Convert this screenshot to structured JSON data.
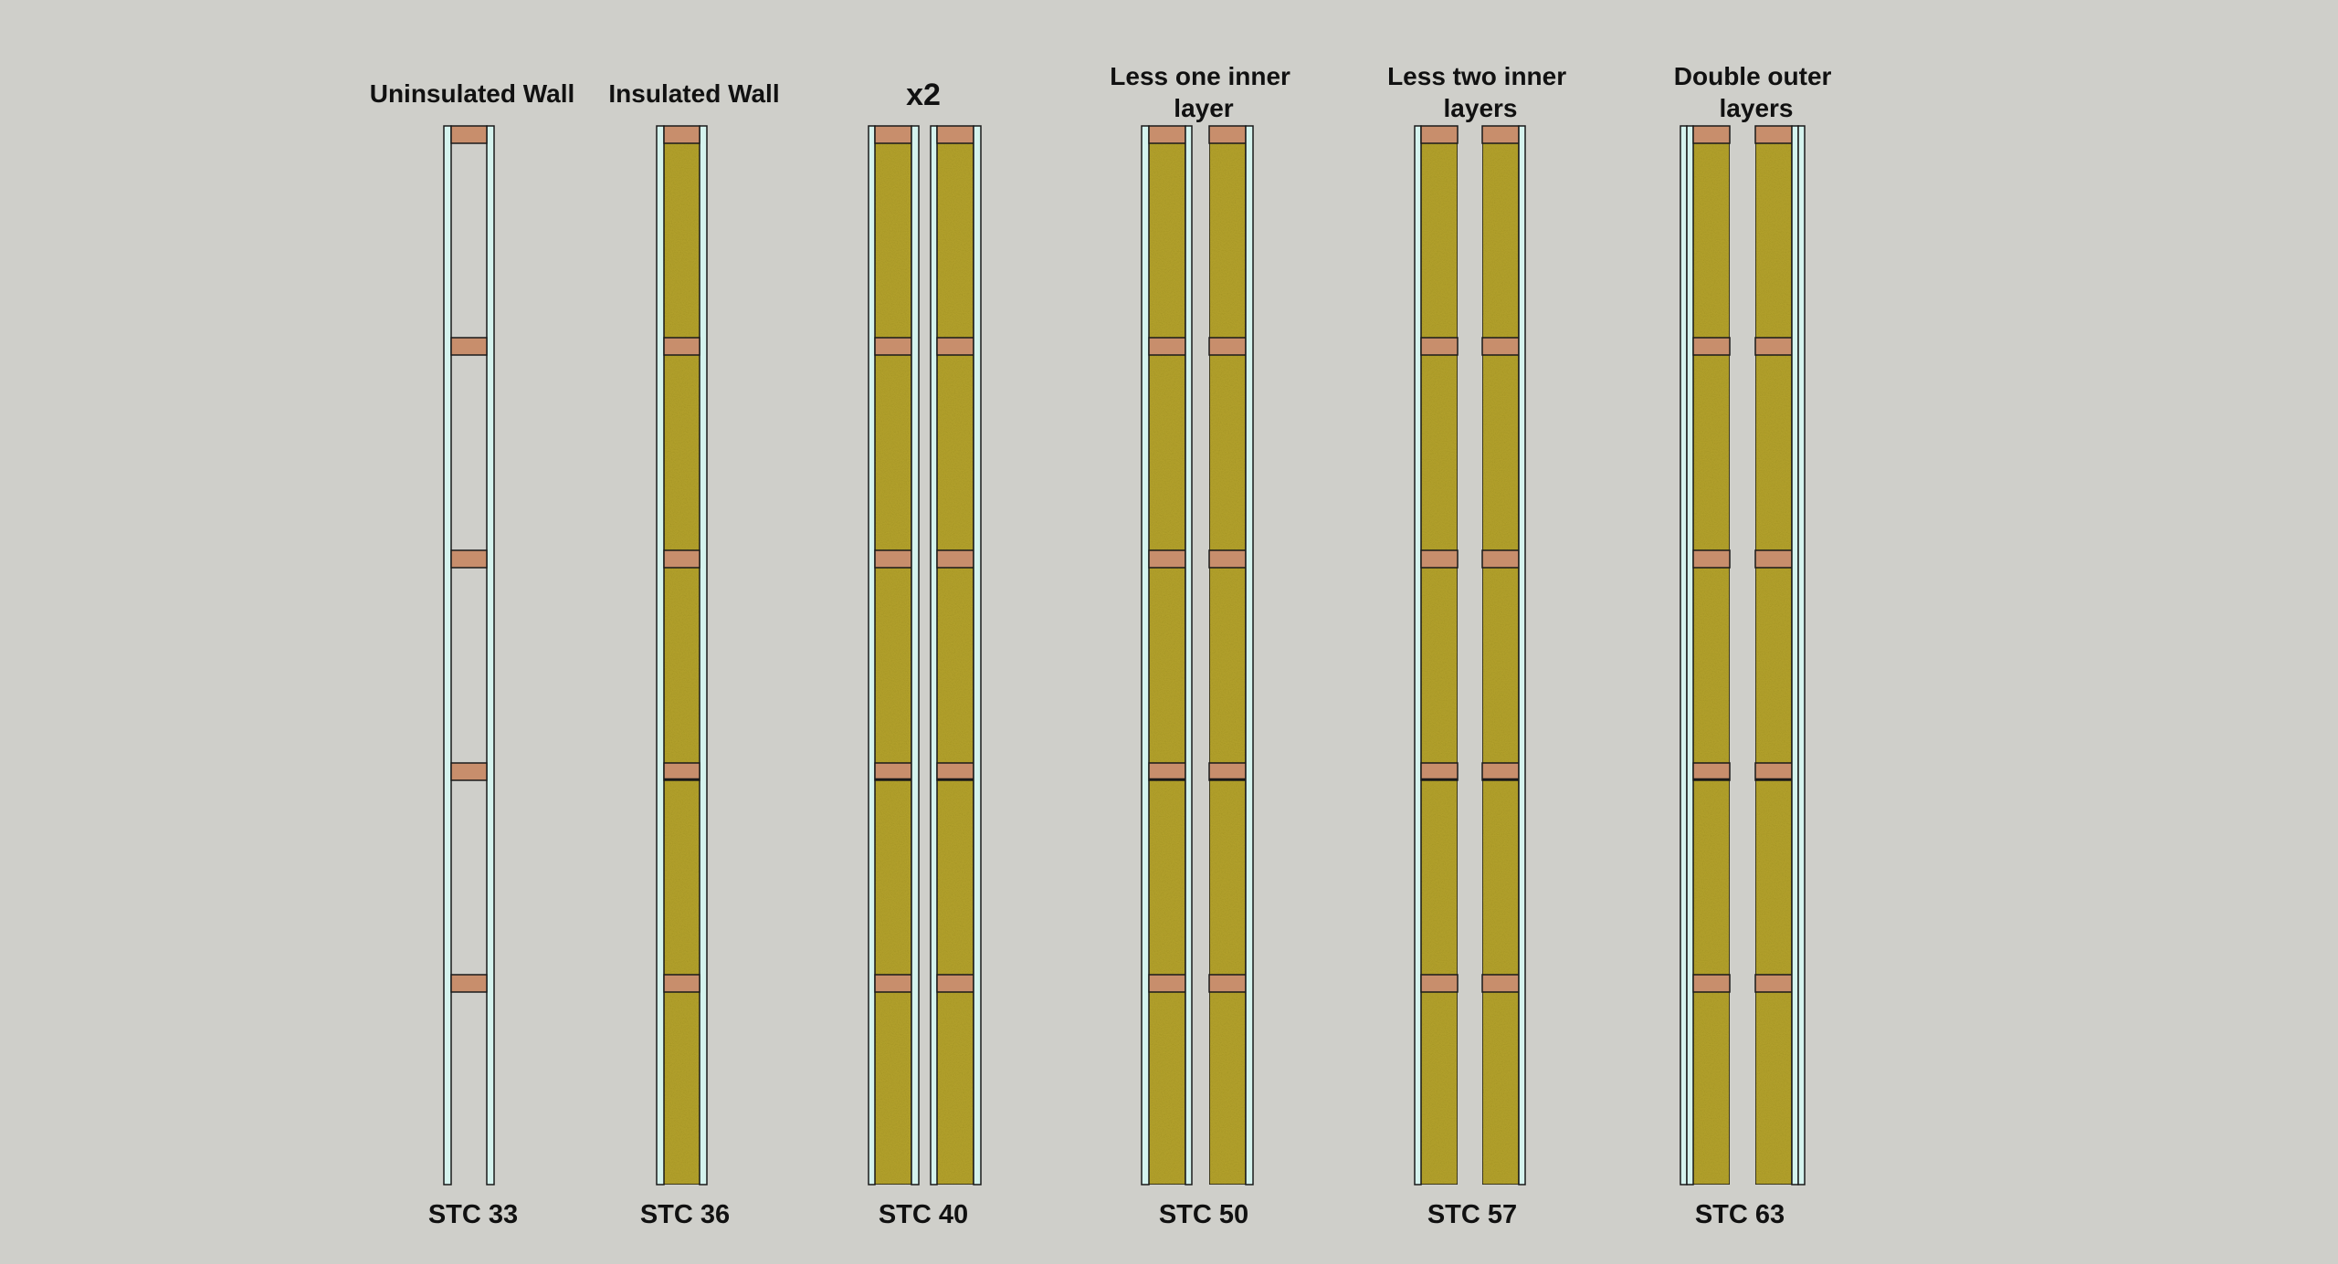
{
  "colors": {
    "background": "#cfcfca",
    "drywall": "#d5f3ee",
    "stud": "#c88e6c",
    "insulation": "#b5a32b",
    "outline": "#1a1a1a"
  },
  "walls": [
    {
      "title": [
        "Uninsulated Wall"
      ],
      "stc_label": "STC 33",
      "insulated": false
    },
    {
      "title": [
        "Insulated Wall"
      ],
      "stc_label": "STC 36",
      "insulated": true
    },
    {
      "title": [
        "x2"
      ],
      "stc_label": "STC 40",
      "insulated": true
    },
    {
      "title": [
        "Less one inner",
        "layer"
      ],
      "stc_label": "STC 50",
      "insulated": true
    },
    {
      "title": [
        "Less two inner",
        "layers"
      ],
      "stc_label": "STC 57",
      "insulated": true
    },
    {
      "title": [
        "Double outer",
        "layers"
      ],
      "stc_label": "STC 63",
      "insulated": true
    }
  ]
}
